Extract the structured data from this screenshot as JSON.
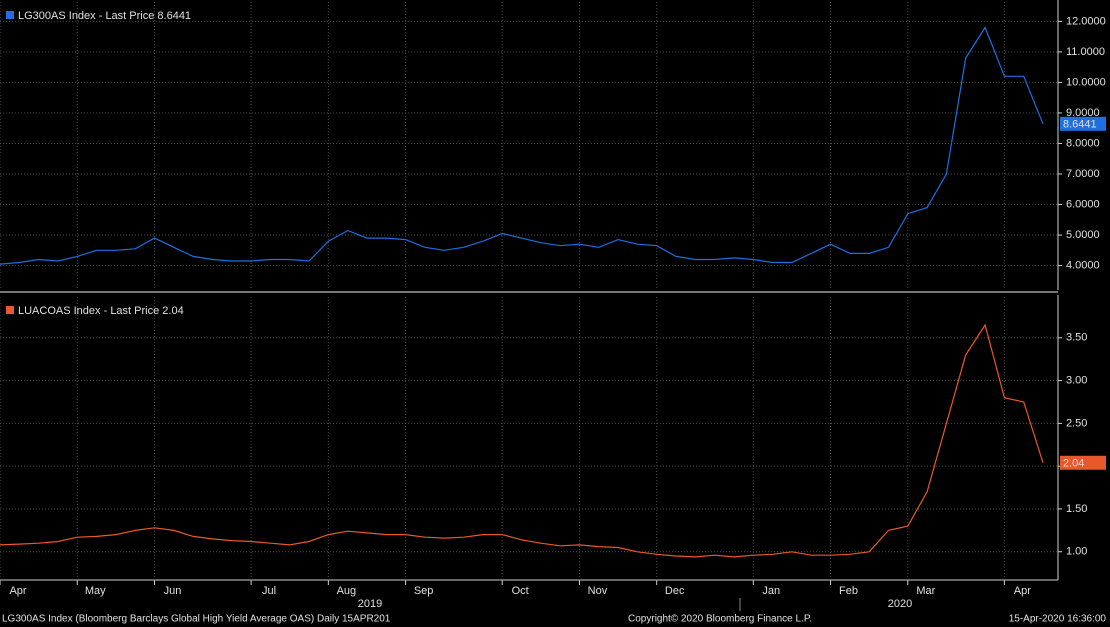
{
  "chart_data": [
    {
      "type": "line",
      "series": [
        {
          "name": "LG300AS Index - Last Price 8.6441",
          "color": "#1e6fe0",
          "values": [
            4.05,
            4.1,
            4.2,
            4.15,
            4.3,
            4.5,
            4.5,
            4.55,
            4.9,
            4.6,
            4.3,
            4.2,
            4.15,
            4.15,
            4.2,
            4.2,
            4.15,
            4.8,
            5.15,
            4.9,
            4.9,
            4.85,
            4.6,
            4.5,
            4.6,
            4.8,
            5.05,
            4.9,
            4.75,
            4.65,
            4.7,
            4.6,
            4.85,
            4.7,
            4.65,
            4.3,
            4.2,
            4.2,
            4.25,
            4.2,
            4.1,
            4.1,
            4.4,
            4.7,
            4.4,
            4.4,
            4.6,
            5.7,
            5.9,
            7.0,
            10.8,
            11.8,
            10.2,
            10.2,
            8.6441
          ]
        }
      ],
      "last_value_label": "8.6441",
      "ylim": [
        3.2,
        12.7
      ],
      "yticks": [
        {
          "value": 4,
          "label": "4.0000"
        },
        {
          "value": 5,
          "label": "5.0000"
        },
        {
          "value": 6,
          "label": "6.0000"
        },
        {
          "value": 7,
          "label": "7.0000"
        },
        {
          "value": 8,
          "label": "8.0000"
        },
        {
          "value": 9,
          "label": "9.0000"
        },
        {
          "value": 10,
          "label": "10.0000"
        },
        {
          "value": 11,
          "label": "11.0000"
        },
        {
          "value": 12,
          "label": "12.0000"
        }
      ],
      "grid": true
    },
    {
      "type": "line",
      "categories": [
        "Apr",
        null,
        null,
        null,
        "May",
        null,
        null,
        null,
        "Jun",
        null,
        null,
        null,
        null,
        "Jul",
        null,
        null,
        null,
        "Aug",
        null,
        null,
        null,
        "Sep",
        null,
        null,
        null,
        null,
        "Oct",
        null,
        null,
        null,
        "Nov",
        null,
        null,
        null,
        "Dec",
        null,
        null,
        null,
        null,
        "Jan",
        null,
        null,
        null,
        "Feb",
        null,
        null,
        null,
        "Mar",
        null,
        null,
        null,
        null,
        "Apr",
        null,
        null
      ],
      "x_group_labels": [
        "2019",
        "2020"
      ],
      "series": [
        {
          "name": "LUACOAS Index - Last Price 2.04",
          "color": "#e8582a",
          "values": [
            1.08,
            1.09,
            1.1,
            1.12,
            1.17,
            1.18,
            1.2,
            1.25,
            1.28,
            1.25,
            1.18,
            1.15,
            1.13,
            1.12,
            1.1,
            1.08,
            1.12,
            1.2,
            1.24,
            1.22,
            1.2,
            1.2,
            1.17,
            1.16,
            1.17,
            1.2,
            1.2,
            1.14,
            1.1,
            1.07,
            1.08,
            1.06,
            1.05,
            1.0,
            0.97,
            0.95,
            0.94,
            0.96,
            0.94,
            0.96,
            0.97,
            1.0,
            0.96,
            0.96,
            0.97,
            1.0,
            1.25,
            1.3,
            1.7,
            2.5,
            3.3,
            3.65,
            2.8,
            2.75,
            2.04
          ]
        }
      ],
      "last_value_label": "2.04",
      "ylim": [
        0.67,
        4.0
      ],
      "yticks": [
        {
          "value": 1,
          "label": "1.00"
        },
        {
          "value": 1.5,
          "label": "1.50"
        },
        {
          "value": 2,
          "label": "2.00"
        },
        {
          "value": 2.5,
          "label": "2.50"
        },
        {
          "value": 3,
          "label": "3.00"
        },
        {
          "value": 3.5,
          "label": "3.50"
        }
      ],
      "grid": true
    }
  ],
  "footer": {
    "left": "LG300AS Index (Bloomberg Barclays Global High Yield Average OAS)  Daily 15APR201",
    "center": "Copyright© 2020 Bloomberg Finance L.P.",
    "right": "15-Apr-2020 16:36:00"
  }
}
